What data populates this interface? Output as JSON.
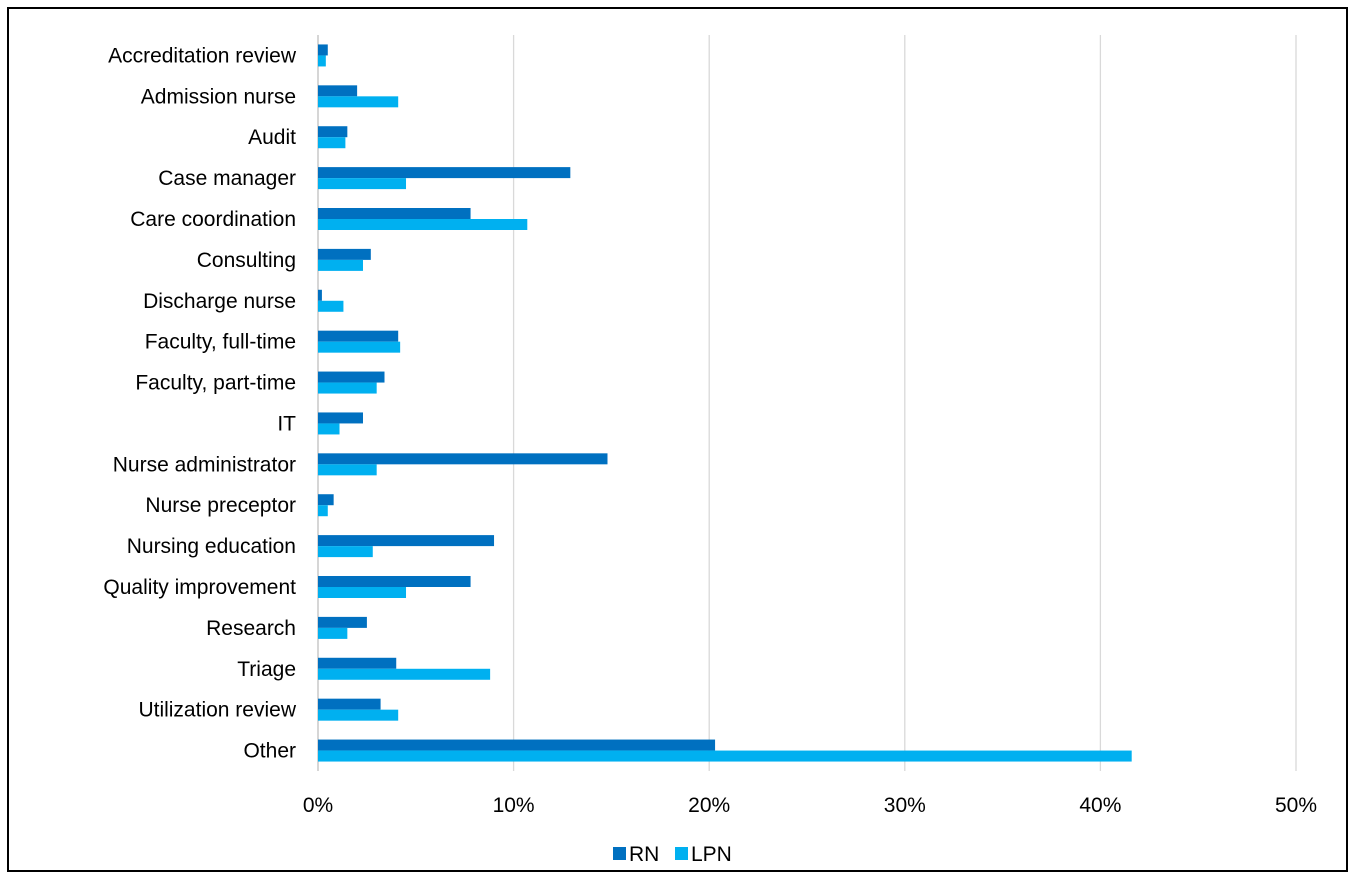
{
  "chart_data": {
    "type": "bar",
    "orientation": "horizontal",
    "categories": [
      "Accreditation review",
      "Admission nurse",
      "Audit",
      "Case manager",
      "Care coordination",
      "Consulting",
      "Discharge nurse",
      "Faculty, full-time",
      "Faculty, part-time",
      "IT",
      "Nurse administrator",
      "Nurse preceptor",
      "Nursing education",
      "Quality improvement",
      "Research",
      "Triage",
      "Utilization review",
      "Other"
    ],
    "series": [
      {
        "name": "RN",
        "color": "#0070C0",
        "values": [
          0.5,
          2.0,
          1.5,
          12.9,
          7.8,
          2.7,
          0.2,
          4.1,
          3.4,
          2.3,
          14.8,
          0.8,
          9.0,
          7.8,
          2.5,
          4.0,
          3.2,
          20.3
        ]
      },
      {
        "name": "LPN",
        "color": "#00B0F0",
        "values": [
          0.4,
          4.1,
          1.4,
          4.5,
          10.7,
          2.3,
          1.3,
          4.2,
          3.0,
          1.1,
          3.0,
          0.5,
          2.8,
          4.5,
          1.5,
          8.8,
          4.1,
          41.6
        ]
      }
    ],
    "xlim": [
      0,
      50
    ],
    "xticks": [
      "0%",
      "10%",
      "20%",
      "30%",
      "40%",
      "50%"
    ],
    "xlabel": "",
    "ylabel": "",
    "grid": "vertical",
    "legend": "bottom"
  }
}
